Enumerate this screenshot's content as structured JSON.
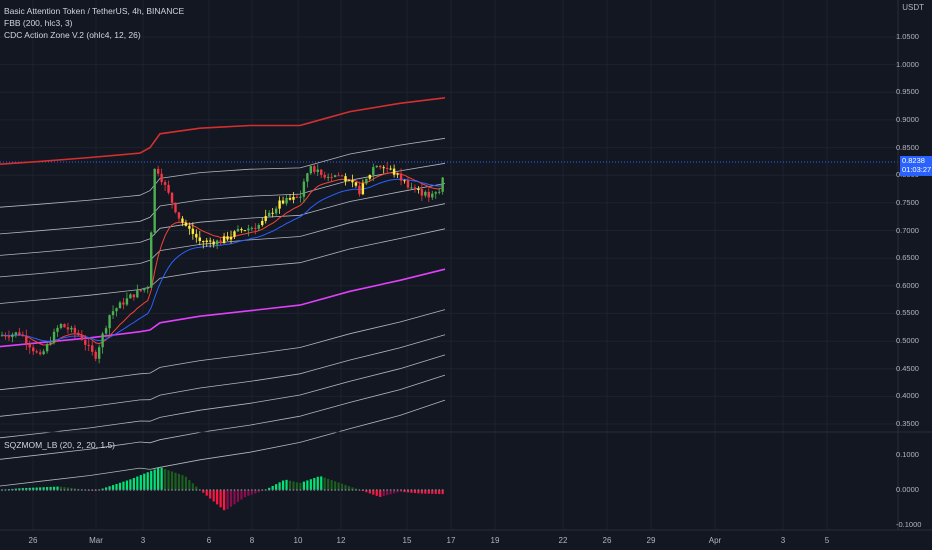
{
  "legend": {
    "title": "Basic Attention Token / TetherUS, 4h, BINANCE",
    "ind1": "FBB (200, hlc3, 3)",
    "ind2": "CDC Action Zone V.2 (ohlc4, 12, 26)",
    "ind3": "SQZMOM_LB (20, 2, 20, 1.5)"
  },
  "price_axis": {
    "currency": "USDT",
    "labels": [
      "1.0500",
      "1.0000",
      "0.9500",
      "0.9000",
      "0.8500",
      "0.8000",
      "0.7500",
      "0.7000",
      "0.6500",
      "0.6000",
      "0.5500",
      "0.5000",
      "0.4500",
      "0.4000",
      "0.3500"
    ],
    "current_price": "0.8238",
    "countdown": "01:03:27"
  },
  "osc_axis": {
    "labels": [
      "0.1000",
      "0.0000",
      "-0.1000"
    ]
  },
  "time_axis": {
    "labels": [
      "26",
      "Mar",
      "3",
      "6",
      "8",
      "10",
      "12",
      "15",
      "17",
      "19",
      "22",
      "26",
      "29",
      "Apr",
      "3",
      "5"
    ]
  },
  "colors": {
    "background": "#131722",
    "bull": "#4caf50",
    "bear": "#f23645",
    "yellow": "#ffeb3b",
    "upper_band": "#d32f2f",
    "basis_band": "#e040fb",
    "fib_bands": "#b2b5be",
    "ema_fast": "#f44336",
    "ema_slow": "#2962ff",
    "current_price": "#2962ff"
  },
  "chart_data": [
    {
      "type": "line",
      "title": "Basic Attention Token / TetherUS, 4h, BINANCE",
      "ylim": [
        0.345,
        1.06
      ],
      "x": [
        "26",
        "Mar",
        "3",
        "6",
        "8",
        "10",
        "12",
        "15",
        "17"
      ],
      "series": [
        {
          "name": "FBB (200, hlc3, 3)",
          "values": [
            0.82,
            0.82,
            0.85,
            0.89,
            0.89,
            0.89,
            0.92,
            0.935,
            0.94
          ]
        },
        {
          "name": "CDC Action Zone V.2 (ohlc4, 12, 26)",
          "values": [
            0.5,
            0.49,
            0.56,
            0.67,
            0.69,
            0.75,
            0.8,
            0.78,
            0.78
          ]
        }
      ]
    },
    {
      "type": "bar",
      "title": "SQZMOM_LB (20, 2, 20, 1.5)",
      "ylim": [
        -0.11,
        0.11
      ],
      "categories": [
        "26",
        "Mar",
        "3",
        "6",
        "8",
        "10",
        "12",
        "15",
        "17"
      ],
      "values": [
        0.0,
        0.01,
        0.065,
        -0.06,
        0.0,
        0.035,
        0.04,
        -0.02,
        -0.01
      ]
    }
  ]
}
